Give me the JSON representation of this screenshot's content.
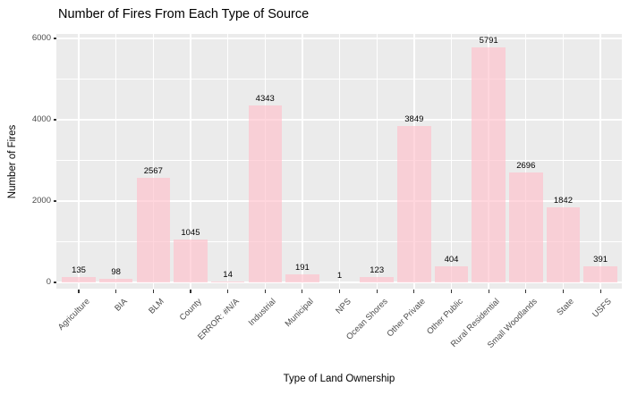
{
  "chart_data": {
    "type": "bar",
    "title": "Number of Fires From Each Type of Source",
    "xlabel": "Type of Land Ownership",
    "ylabel": "Number of Fires",
    "categories": [
      "Agriculture",
      "BIA",
      "BLM",
      "County",
      "ERROR: #N/A",
      "Industrial",
      "Municipal",
      "NPS",
      "Ocean Shores",
      "Other Private",
      "Other Public",
      "Rural Residential",
      "Small Woodlands",
      "State",
      "USFS"
    ],
    "values": [
      135,
      98,
      2567,
      1045,
      14,
      4343,
      191,
      1,
      123,
      3849,
      404,
      5791,
      2696,
      1842,
      391
    ],
    "bar_value_labels": [
      "135",
      "98",
      "2567",
      "1045",
      "14",
      "4343",
      "191",
      "1",
      "123",
      "3849",
      "404",
      "5791",
      "2696",
      "1842",
      "391"
    ],
    "ylim": [
      0,
      6080
    ],
    "y_major_ticks": [
      0,
      2000,
      4000,
      6000
    ],
    "y_minor_ticks": [
      1000,
      3000,
      5000
    ],
    "grid": true,
    "legend": "none",
    "style": {
      "panel_bg": "#EBEBEB",
      "grid_color": "#FFFFFF",
      "bar_fill_rgba": "rgba(255,192,203,0.65)",
      "bar_fill_apparent_hex": "#F8CFD6",
      "tick_label_color": "#4D4D4D",
      "tick_mark_color": "#333333",
      "title_color": "#000000",
      "axis_title_color": "#000000",
      "bar_label_color": "#000000"
    }
  }
}
